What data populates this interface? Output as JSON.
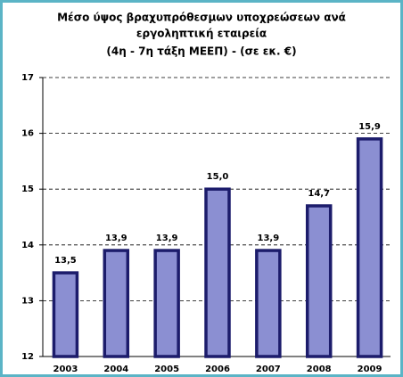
{
  "chart_data": {
    "type": "bar",
    "title": [
      "Μέσο ύψος βραχυπρόθεσμων υποχρεώσεων ανά",
      "εργοληπτική εταιρεία",
      "(4η - 7η τάξη ΜΕΕΠ) - (σε εκ. €)"
    ],
    "categories": [
      "2003",
      "2004",
      "2005",
      "2006",
      "2007",
      "2008",
      "2009"
    ],
    "values": [
      13.5,
      13.9,
      13.9,
      15.0,
      13.9,
      14.7,
      15.9
    ],
    "value_labels": [
      "13,5",
      "13,9",
      "13,9",
      "15,0",
      "13,9",
      "14,7",
      "15,9"
    ],
    "color": "#8b8fd2",
    "ylim": [
      12,
      17
    ],
    "yticks": [
      12,
      13,
      14,
      15,
      16,
      17
    ],
    "grid": true
  }
}
